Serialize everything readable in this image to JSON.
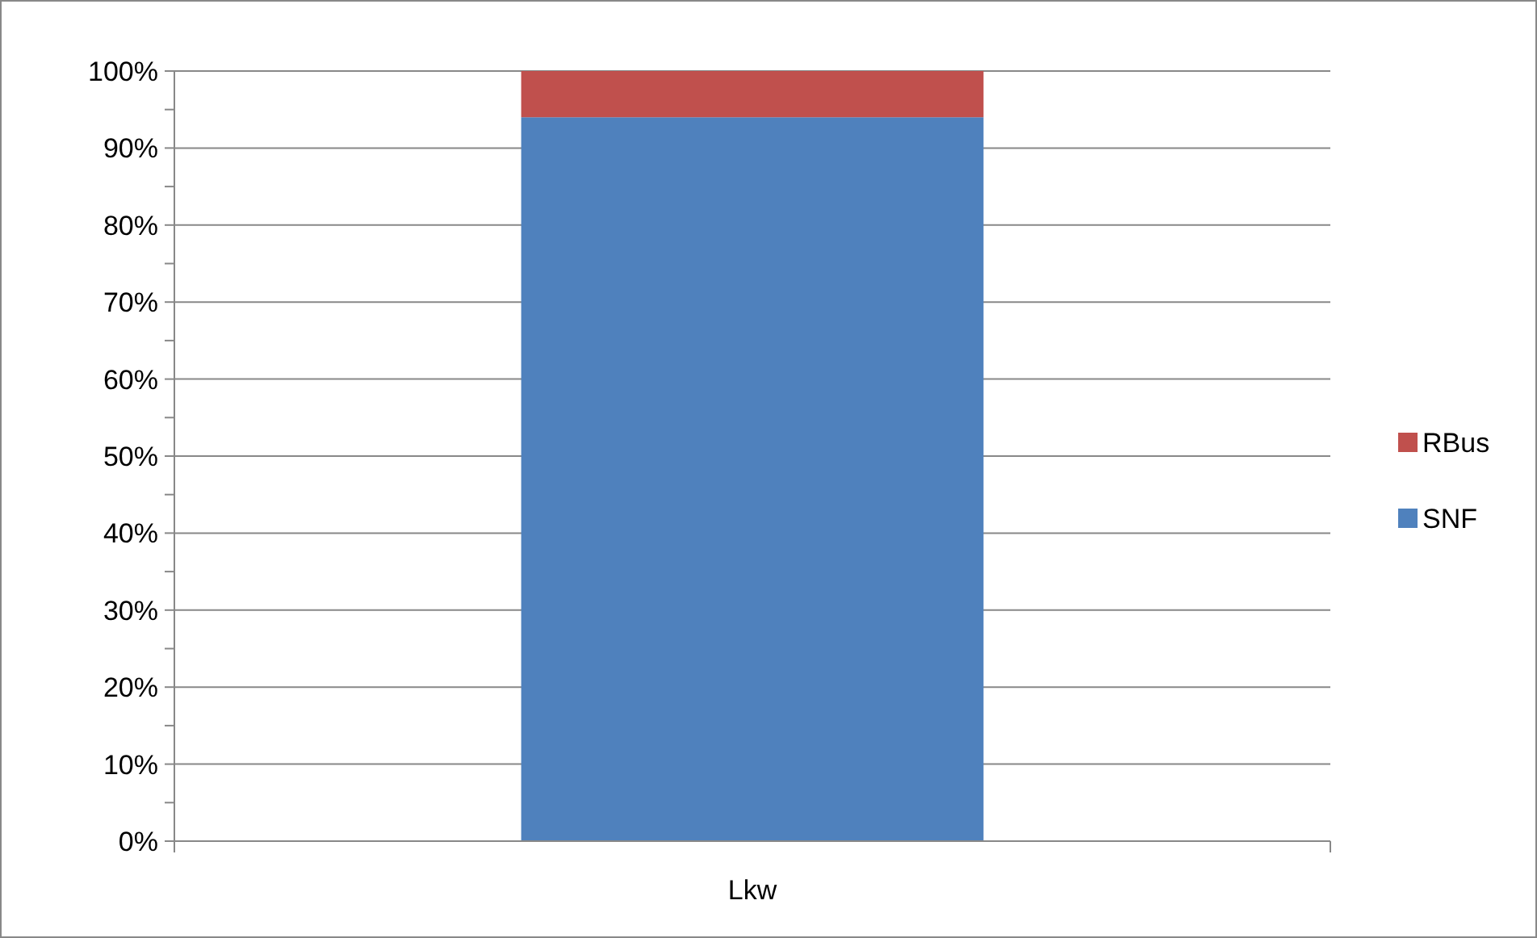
{
  "chart_data": {
    "type": "bar",
    "stacked": true,
    "categories": [
      "Lkw"
    ],
    "series": [
      {
        "name": "SNF",
        "color": "#4f81bd",
        "values": [
          94
        ]
      },
      {
        "name": "RBus",
        "color": "#c0504d",
        "values": [
          6
        ]
      }
    ],
    "ylim": [
      0,
      100
    ],
    "yticks": [
      {
        "value": 0,
        "label": "0%"
      },
      {
        "value": 5,
        "label": null
      },
      {
        "value": 10,
        "label": "10%"
      },
      {
        "value": 15,
        "label": null
      },
      {
        "value": 20,
        "label": "20%"
      },
      {
        "value": 25,
        "label": null
      },
      {
        "value": 30,
        "label": "30%"
      },
      {
        "value": 35,
        "label": null
      },
      {
        "value": 40,
        "label": "40%"
      },
      {
        "value": 45,
        "label": null
      },
      {
        "value": 50,
        "label": "50%"
      },
      {
        "value": 55,
        "label": null
      },
      {
        "value": 60,
        "label": "60%"
      },
      {
        "value": 65,
        "label": null
      },
      {
        "value": 70,
        "label": "70%"
      },
      {
        "value": 75,
        "label": null
      },
      {
        "value": 80,
        "label": "80%"
      },
      {
        "value": 85,
        "label": null
      },
      {
        "value": 90,
        "label": "90%"
      },
      {
        "value": 95,
        "label": null
      },
      {
        "value": 100,
        "label": "100%"
      }
    ],
    "grid": "y",
    "legend": "right"
  }
}
